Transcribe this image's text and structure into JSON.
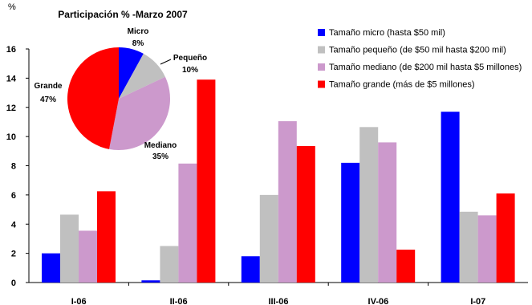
{
  "chart_data": [
    {
      "type": "bar",
      "ylabel": "%",
      "ylim": [
        0,
        16
      ],
      "yticks": [
        "0",
        "2",
        "4",
        "6",
        "8",
        "10",
        "12",
        "14",
        "16"
      ],
      "categories": [
        "I-06",
        "II-06",
        "III-06",
        "IV-06",
        "I-07"
      ],
      "grid": false,
      "legend": "top-right",
      "series": [
        {
          "name": "Tamaño micro (hasta $50 mil)",
          "color": "#0000ff",
          "values": [
            2.0,
            0.15,
            1.8,
            8.2,
            11.7
          ]
        },
        {
          "name": "Tamaño pequeño (de $50 mil hasta $200 mil)",
          "color": "#c0c0c0",
          "values": [
            4.65,
            2.5,
            6.0,
            10.65,
            4.85
          ]
        },
        {
          "name": "Tamaño mediano (de $200 mil hasta $5 millones)",
          "color": "#cc99cc",
          "values": [
            3.55,
            8.15,
            11.05,
            9.6,
            4.6
          ]
        },
        {
          "name": "Tamaño grande (más de $5 millones)",
          "color": "#ff0000",
          "values": [
            6.25,
            13.9,
            9.35,
            2.25,
            6.1
          ]
        }
      ]
    },
    {
      "type": "pie",
      "title": "Participación % -Marzo 2007",
      "slices": [
        {
          "label": "Micro",
          "pct_label": "8%",
          "value": 8,
          "color": "#0000ff"
        },
        {
          "label": "Pequeño",
          "pct_label": "10%",
          "value": 10,
          "color": "#c0c0c0"
        },
        {
          "label": "Mediano",
          "pct_label": "35%",
          "value": 35,
          "color": "#cc99cc"
        },
        {
          "label": "Grande",
          "pct_label": "47%",
          "value": 47,
          "color": "#ff0000"
        }
      ]
    }
  ]
}
